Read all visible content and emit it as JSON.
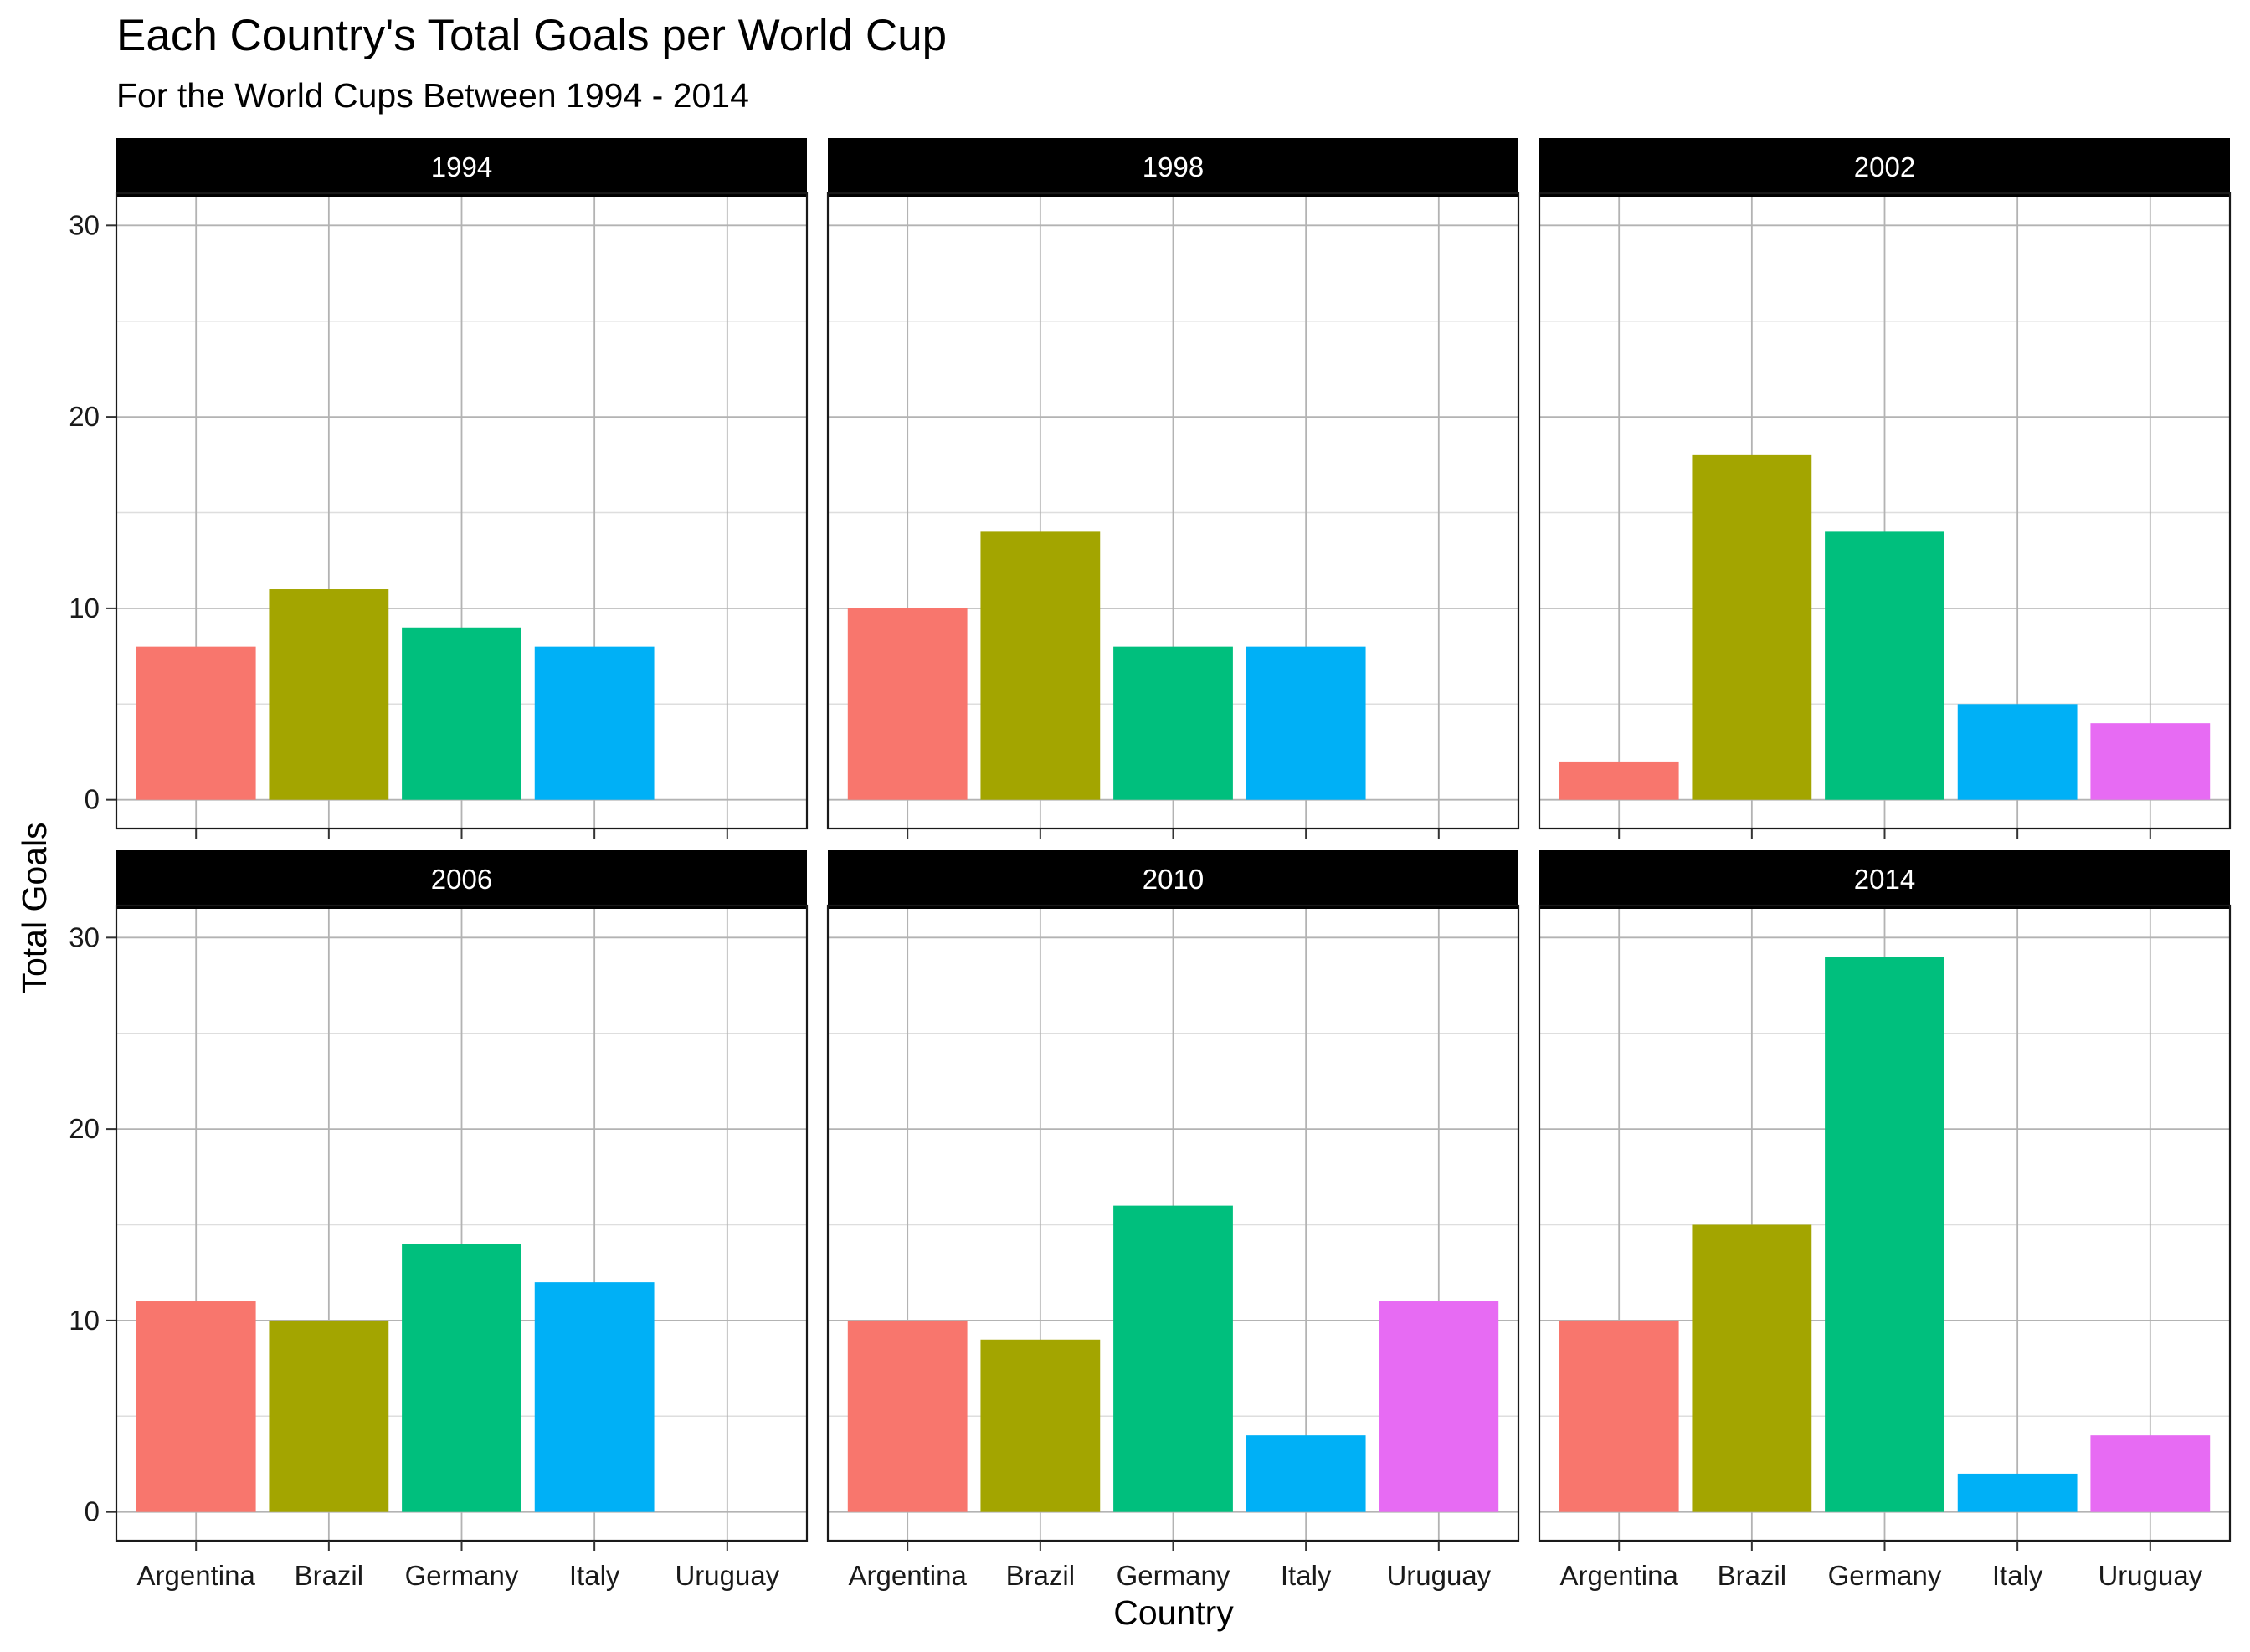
{
  "chart_data": {
    "type": "bar",
    "title": "Each Country's Total Goals per World Cup",
    "subtitle": "For the World Cups Between 1994 - 2014",
    "xlabel": "Country",
    "ylabel": "Total Goals",
    "categories": [
      "Argentina",
      "Brazil",
      "Germany",
      "Italy",
      "Uruguay"
    ],
    "colors": {
      "Argentina": "#F8766D",
      "Brazil": "#A3A500",
      "Germany": "#00BF7D",
      "Italy": "#00B0F6",
      "Uruguay": "#E76BF3"
    },
    "ylim": [
      0,
      30
    ],
    "yticks": [
      0,
      10,
      20,
      30
    ],
    "grid": true,
    "legend": "none",
    "facets": [
      {
        "label": "1994",
        "values": [
          8,
          11,
          9,
          8,
          null
        ]
      },
      {
        "label": "1998",
        "values": [
          10,
          14,
          8,
          8,
          null
        ]
      },
      {
        "label": "2002",
        "values": [
          2,
          18,
          14,
          5,
          4
        ]
      },
      {
        "label": "2006",
        "values": [
          11,
          10,
          14,
          12,
          null
        ]
      },
      {
        "label": "2010",
        "values": [
          10,
          9,
          16,
          4,
          11
        ]
      },
      {
        "label": "2014",
        "values": [
          10,
          15,
          29,
          2,
          4
        ]
      }
    ]
  }
}
